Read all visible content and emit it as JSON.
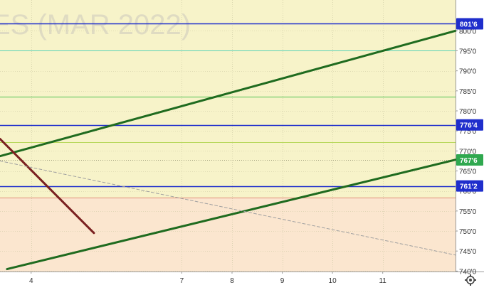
{
  "chart_data": {
    "type": "candlestick",
    "watermark": "ES (MAR 2022)",
    "x_ticks": [
      {
        "label": "4",
        "x": 3.0
      },
      {
        "label": "7",
        "x": 6.0
      },
      {
        "label": "8",
        "x": 7.0
      },
      {
        "label": "9",
        "x": 8.0
      },
      {
        "label": "10",
        "x": 9.0
      },
      {
        "label": "11",
        "x": 10.0
      }
    ],
    "y_ticks": [
      {
        "label": "740'0",
        "value": 740
      },
      {
        "label": "745'0",
        "value": 745
      },
      {
        "label": "750'0",
        "value": 750
      },
      {
        "label": "755'0",
        "value": 755
      },
      {
        "label": "760'0",
        "value": 760
      },
      {
        "label": "765'0",
        "value": 765
      },
      {
        "label": "770'0",
        "value": 770
      },
      {
        "label": "775'0",
        "value": 775
      },
      {
        "label": "780'0",
        "value": 780
      },
      {
        "label": "785'0",
        "value": 785
      },
      {
        "label": "790'0",
        "value": 790
      },
      {
        "label": "795'0",
        "value": 795
      },
      {
        "label": "800'0",
        "value": 800
      }
    ],
    "ylim": [
      739,
      805.2
    ],
    "xlim": [
      2.38,
      11.45
    ],
    "price_lines": [
      {
        "label": "801'6",
        "value": 801.75
      },
      {
        "label": "776'4",
        "value": 776.5
      },
      {
        "label": "761'2",
        "value": 761.25
      }
    ],
    "current_price": {
      "label": "767'6",
      "value": 767.75
    },
    "horizontal_levels": [
      {
        "value": 795.0,
        "color": "#59d3b7"
      },
      {
        "value": 783.5,
        "color": "#4fc34f"
      },
      {
        "value": 772.2,
        "color": "#b8d85c"
      },
      {
        "value": 758.3,
        "color": "#e08a7a"
      }
    ],
    "trend_lines": [
      {
        "color": "#1f6b1f",
        "points": [
          [
            2.38,
            768.7
          ],
          [
            11.45,
            800.0
          ]
        ]
      },
      {
        "color": "#1f6b1f",
        "points": [
          [
            2.52,
            740.5
          ],
          [
            11.45,
            767.8
          ]
        ]
      },
      {
        "color": "#7a2020",
        "points": [
          [
            2.38,
            773.0
          ],
          [
            4.25,
            749.5
          ]
        ]
      },
      {
        "color": "#a0a0a0",
        "dashed": true,
        "points": [
          [
            2.38,
            767.5
          ],
          [
            11.45,
            744.0
          ]
        ]
      }
    ],
    "up_color": "#2fa84f",
    "down_color": "#d9434b",
    "zone_colors": {
      "upper": "#f7f3c9",
      "lower": "#fbe6cf",
      "divider": 758.3
    },
    "candles": []
  }
}
